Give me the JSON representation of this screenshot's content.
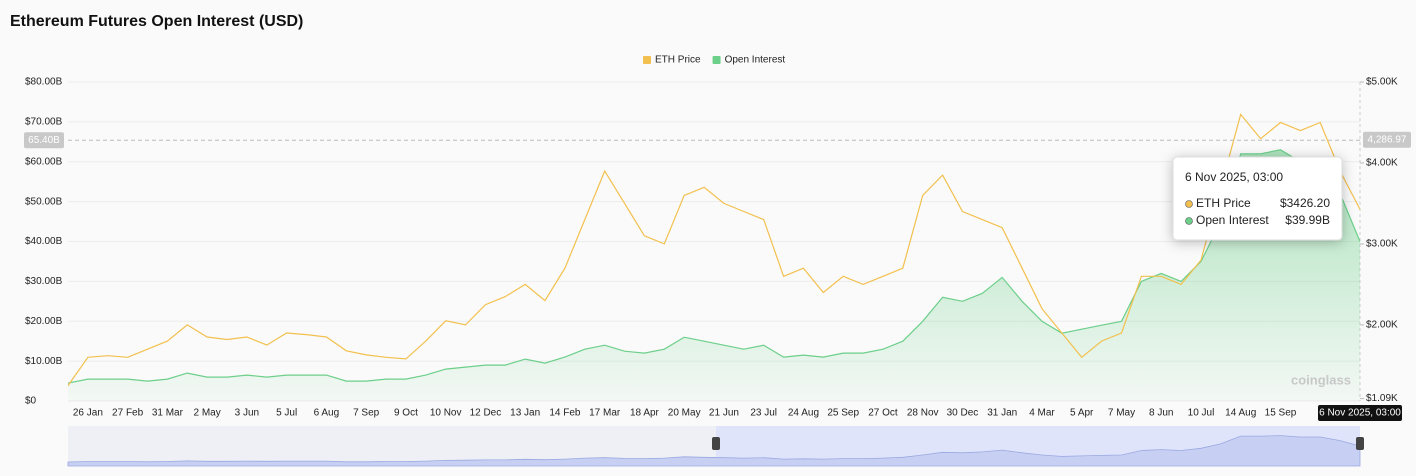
{
  "chart_data": {
    "type": "line",
    "title": "Ethereum Futures Open Interest (USD)",
    "categories": [
      null,
      "26 Jan",
      null,
      "27 Feb",
      null,
      "31 Mar",
      null,
      "2 May",
      null,
      "3 Jun",
      null,
      "5 Jul",
      null,
      "6 Aug",
      null,
      "7 Sep",
      null,
      "9 Oct",
      null,
      "10 Nov",
      null,
      "12 Dec",
      null,
      "13 Jan",
      null,
      "14 Feb",
      null,
      "17 Mar",
      null,
      "18 Apr",
      null,
      "20 May",
      null,
      "21 Jun",
      null,
      "23 Jul",
      null,
      "24 Aug",
      null,
      "25 Sep",
      null,
      "27 Oct",
      null,
      "28 Nov",
      null,
      "30 Dec",
      null,
      "31 Jan",
      null,
      "4 Mar",
      null,
      "5 Apr",
      null,
      "7 May",
      null,
      "8 Jun",
      null,
      "10 Jul",
      null,
      "14 Aug",
      null,
      "15 Sep",
      null,
      null,
      null,
      "6 Nov 2025, 03:00"
    ],
    "series": [
      {
        "name": "ETH Price",
        "color": "#f2c04e",
        "axis": "y2",
        "values": [
          1250,
          1600,
          1620,
          1600,
          1700,
          1800,
          2000,
          1850,
          1820,
          1850,
          1750,
          1900,
          1880,
          1850,
          1680,
          1630,
          1600,
          1580,
          1800,
          2050,
          2000,
          2250,
          2350,
          2500,
          2300,
          2700,
          3300,
          3900,
          3500,
          3100,
          3000,
          3600,
          3700,
          3500,
          3400,
          3300,
          2600,
          2700,
          2400,
          2600,
          2500,
          2600,
          2700,
          3600,
          3850,
          3400,
          3300,
          3200,
          2700,
          2200,
          1900,
          1600,
          1800,
          1900,
          2600,
          2600,
          2500,
          2800,
          3700,
          4600,
          4300,
          4500,
          4400,
          4500,
          3900,
          3426.2
        ]
      },
      {
        "name": "Open Interest",
        "color": "#6ccf8a",
        "area": true,
        "values": [
          4.5,
          5.5,
          5.5,
          5.5,
          5,
          5.5,
          7,
          6,
          6,
          6.5,
          6,
          6.5,
          6.5,
          6.5,
          5,
          5,
          5.5,
          5.5,
          6.5,
          8,
          8.5,
          9,
          9,
          10.5,
          9.5,
          11,
          13,
          14,
          12.5,
          12,
          13,
          16,
          15,
          14,
          13,
          14,
          11,
          11.5,
          11,
          12,
          12,
          13,
          15,
          20,
          26,
          25,
          27,
          31,
          25,
          20,
          17,
          18,
          19,
          20,
          30,
          32,
          30,
          35,
          45,
          62,
          62,
          63,
          60,
          60,
          52,
          39.99
        ]
      }
    ],
    "ylim": [
      0,
      80
    ],
    "yticks": [
      {
        "value": 0,
        "label": "$0"
      },
      {
        "value": 10,
        "label": "$10.00B"
      },
      {
        "value": 20,
        "label": "$20.00B"
      },
      {
        "value": 30,
        "label": "$30.00B"
      },
      {
        "value": 40,
        "label": "$40.00B"
      },
      {
        "value": 50,
        "label": "$50.00B"
      },
      {
        "value": 60,
        "label": "$60.00B"
      },
      {
        "value": 70,
        "label": "$70.00B"
      },
      {
        "value": 80,
        "label": "$80.00B"
      }
    ],
    "y2lim": [
      1060,
      5000
    ],
    "y2ticks": [
      {
        "value": 1090,
        "label": "$1.09K"
      },
      {
        "value": 2000,
        "label": "$2.00K"
      },
      {
        "value": 3000,
        "label": "$3.00K"
      },
      {
        "value": 4000,
        "label": "$4.00K"
      },
      {
        "value": 5000,
        "label": "$5.00K"
      }
    ],
    "grid": true,
    "legend": "top",
    "crosshair": {
      "y": {
        "value": 65.4,
        "label": "65.40B"
      },
      "y2": {
        "value": 4286.97,
        "label": "4,286.97"
      }
    },
    "tooltip": {
      "value_labels": [
        "$3426.20",
        "$39.99B"
      ]
    },
    "watermark": "coinglass"
  }
}
